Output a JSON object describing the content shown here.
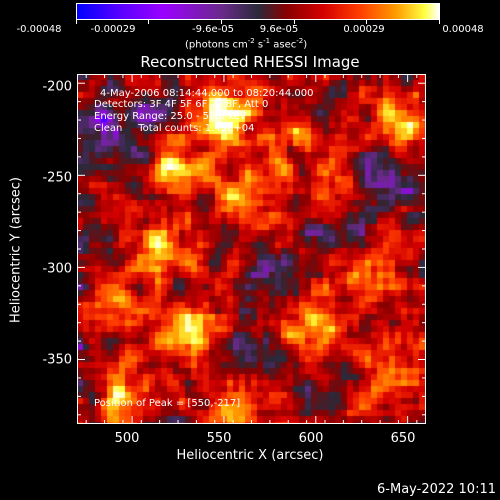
{
  "colorbar": {
    "tick_labels": [
      "-0.00048",
      "-0.00029",
      "-9.6e-05",
      "9.6e-05",
      "0.00029",
      "0.00048"
    ],
    "unit_label": "(photons cm",
    "unit_exp1": "-2",
    "unit_mid1": " s",
    "unit_exp2": "-1",
    "unit_mid2": " asec",
    "unit_exp3": "-2",
    "unit_end": ")"
  },
  "plot": {
    "title": "Reconstructed RHESSI Image",
    "annotations": [
      "4-May-2006 08:14:44.000 to 08:20:44.000",
      "Detectors: 3F 4F 5F 6F 7F 8F, Att 0",
      "Energy Range: 25.0 - 50.0 keV",
      "Clean     Total counts: 1.43E+04"
    ],
    "peak_label": "Position of Peak = [550,-217]"
  },
  "footer": {
    "date": "6-May-2022 10:11"
  },
  "chart_data": {
    "type": "heatmap",
    "title": "Reconstructed RHESSI Image",
    "xlabel": "Heliocentric X (arcsec)",
    "ylabel": "Heliocentric Y (arcsec)",
    "xlim": [
      470,
      660
    ],
    "ylim": [
      -385,
      -195
    ],
    "x_ticks": [
      500,
      550,
      600,
      650
    ],
    "y_ticks": [
      -200,
      -250,
      -300,
      -350
    ],
    "colorbar_range": [
      -0.00048,
      0.00048
    ],
    "peak_position": [
      550,
      -217
    ],
    "grid": false,
    "colormap": [
      "#0000ff",
      "#5a00ff",
      "#9b00ff",
      "#6a2a8a",
      "#2a2a3a",
      "#8a0000",
      "#d40000",
      "#ff3c00",
      "#ff9a00",
      "#ffff40",
      "#ffffff"
    ],
    "hotspots": [
      {
        "x": 550,
        "y": -217,
        "intensity": 1.0
      },
      {
        "x": 530,
        "y": -335,
        "intensity": 0.95
      },
      {
        "x": 515,
        "y": -290,
        "intensity": 0.8
      },
      {
        "x": 565,
        "y": -260,
        "intensity": 0.7
      },
      {
        "x": 645,
        "y": -225,
        "intensity": 0.75
      },
      {
        "x": 525,
        "y": -245,
        "intensity": 0.7
      },
      {
        "x": 495,
        "y": -372,
        "intensity": 0.7
      },
      {
        "x": 630,
        "y": -300,
        "intensity": 0.55
      },
      {
        "x": 600,
        "y": -330,
        "intensity": 0.5
      },
      {
        "x": 490,
        "y": -315,
        "intensity": 0.5
      },
      {
        "x": 585,
        "y": -230,
        "intensity": 0.5
      },
      {
        "x": 640,
        "y": -360,
        "intensity": 0.6
      },
      {
        "x": 555,
        "y": -375,
        "intensity": 0.45
      },
      {
        "x": 610,
        "y": -260,
        "intensity": 0.45
      }
    ],
    "coldspots": [
      {
        "x": 480,
        "y": -225,
        "intensity": -0.6
      },
      {
        "x": 575,
        "y": -300,
        "intensity": -0.5
      },
      {
        "x": 620,
        "y": -275,
        "intensity": -0.45
      },
      {
        "x": 640,
        "y": -250,
        "intensity": -0.5
      },
      {
        "x": 560,
        "y": -345,
        "intensity": -0.45
      },
      {
        "x": 505,
        "y": -220,
        "intensity": -0.4
      }
    ]
  }
}
